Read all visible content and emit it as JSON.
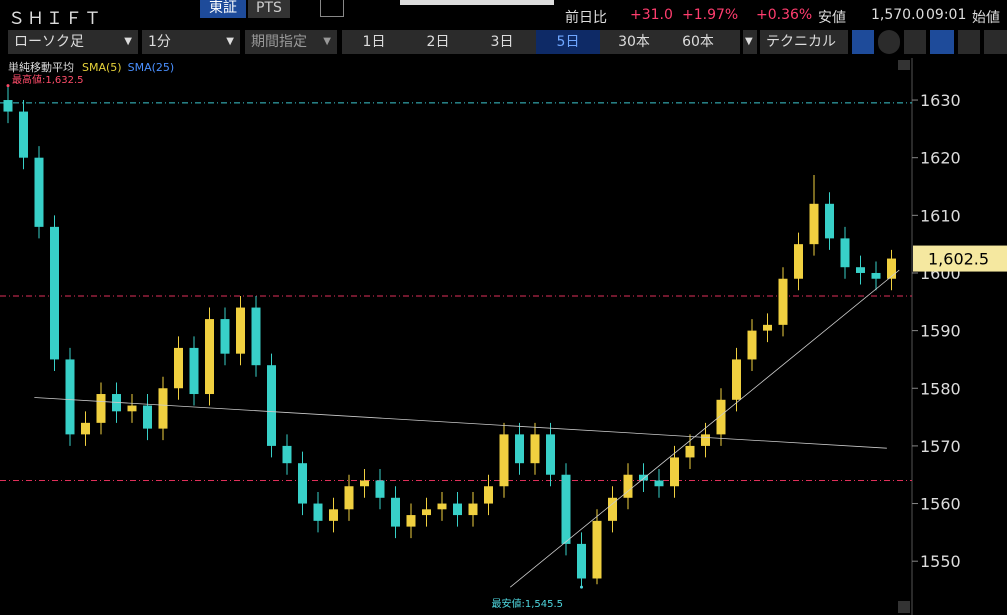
{
  "header": {
    "symbol": "ＳＨＩＦＴ",
    "tabs": [
      "東証",
      "PTS"
    ],
    "change_label": "前日比",
    "change": "+31.0",
    "change_pct": "+1.97%",
    "change_pct2": "+0.36%",
    "low_label": "安値",
    "low": "1,570.0",
    "time": "09:01",
    "open_label": "始値"
  },
  "toolbar": {
    "chart_type": "ローソク足",
    "interval": "1分",
    "range": "期間指定",
    "periods": [
      "1日",
      "2日",
      "3日",
      "5日",
      "30本",
      "60本"
    ],
    "technical": "テクニカル"
  },
  "chart_data": {
    "type": "candlestick",
    "indicator_title": "単純移動平均",
    "indicators": [
      {
        "name": "SMA(5)",
        "color": "#e6d23a"
      },
      {
        "name": "SMA(25)",
        "color": "#4a90ff"
      }
    ],
    "open": [
      1630,
      1628,
      1620,
      1608,
      1585,
      1572,
      1574,
      1579,
      1576,
      1577,
      1573,
      1580,
      1587,
      1579,
      1592,
      1586,
      1594,
      1584,
      1570,
      1567,
      1560,
      1557,
      1559,
      1563,
      1564,
      1561,
      1556,
      1558,
      1559,
      1560,
      1558,
      1560,
      1563,
      1572,
      1567,
      1572,
      1565,
      1553,
      1547,
      1557,
      1561,
      1565,
      1564,
      1563,
      1568,
      1570,
      1572,
      1578,
      1585,
      1590,
      1591,
      1599,
      1605,
      1612,
      1606,
      1601,
      1600,
      1599
    ],
    "high": [
      1632.5,
      1630,
      1622,
      1610,
      1587,
      1576,
      1581,
      1581,
      1579,
      1579,
      1582,
      1589,
      1589,
      1594,
      1594,
      1596,
      1596,
      1586,
      1572,
      1569,
      1562,
      1561,
      1565,
      1566,
      1566,
      1563,
      1560,
      1561,
      1562,
      1562,
      1562,
      1565,
      1574,
      1574,
      1574,
      1574,
      1567,
      1555,
      1559,
      1563,
      1567,
      1567,
      1566,
      1570,
      1572,
      1574,
      1580,
      1587,
      1592,
      1593,
      1601,
      1607,
      1617,
      1614,
      1608,
      1603,
      1602,
      1604
    ],
    "low": [
      1626,
      1618,
      1606,
      1583,
      1570,
      1570,
      1572,
      1574,
      1574,
      1571,
      1571,
      1578,
      1577,
      1577,
      1584,
      1584,
      1582,
      1568,
      1565,
      1558,
      1555,
      1555,
      1557,
      1561,
      1559,
      1554,
      1554,
      1556,
      1557,
      1556,
      1556,
      1558,
      1561,
      1565,
      1565,
      1563,
      1551,
      1545.5,
      1546,
      1555,
      1559,
      1562,
      1561,
      1561,
      1566,
      1568,
      1570,
      1576,
      1583,
      1588,
      1589,
      1597,
      1603,
      1604,
      1599,
      1598,
      1597,
      1597
    ],
    "close": [
      1628,
      1620,
      1608,
      1585,
      1572,
      1574,
      1579,
      1576,
      1577,
      1573,
      1580,
      1587,
      1579,
      1592,
      1586,
      1594,
      1584,
      1570,
      1567,
      1560,
      1557,
      1559,
      1563,
      1564,
      1561,
      1556,
      1558,
      1559,
      1560,
      1558,
      1560,
      1563,
      1572,
      1567,
      1572,
      1565,
      1553,
      1547,
      1557,
      1561,
      1565,
      1564,
      1563,
      1568,
      1570,
      1572,
      1578,
      1585,
      1590,
      1591,
      1599,
      1605,
      1612,
      1606,
      1601,
      1600,
      1599,
      1602.5
    ],
    "up_color": "#f0d040",
    "down_color": "#38d0c8",
    "ylim": [
      1542.4,
      1636.6
    ],
    "yticks": [
      1550,
      1560,
      1570,
      1580,
      1590,
      1600,
      1610,
      1620,
      1630
    ],
    "last": {
      "value": 1602.5,
      "label": "1,602.5"
    },
    "annotations": [
      {
        "text": "最高値:1,632.5",
        "index": 0,
        "value": 1632.5,
        "color": "#ff4d6a"
      },
      {
        "text": "最安値:1,545.5",
        "index": 37,
        "value": 1545.5,
        "color": "#4fd8e0"
      }
    ],
    "hlines": [
      {
        "value": 1629.5,
        "color": "#3cc8d0"
      },
      {
        "value": 1596,
        "color": "#e0305a"
      },
      {
        "value": 1564,
        "color": "#e0305a"
      }
    ],
    "trendlines": [
      {
        "x": [
          1.7,
          56.7
        ],
        "values": [
          1578.4,
          1569.6
        ]
      },
      {
        "x": [
          32.4,
          57.5
        ],
        "values": [
          1545.5,
          1600.5
        ]
      }
    ]
  }
}
